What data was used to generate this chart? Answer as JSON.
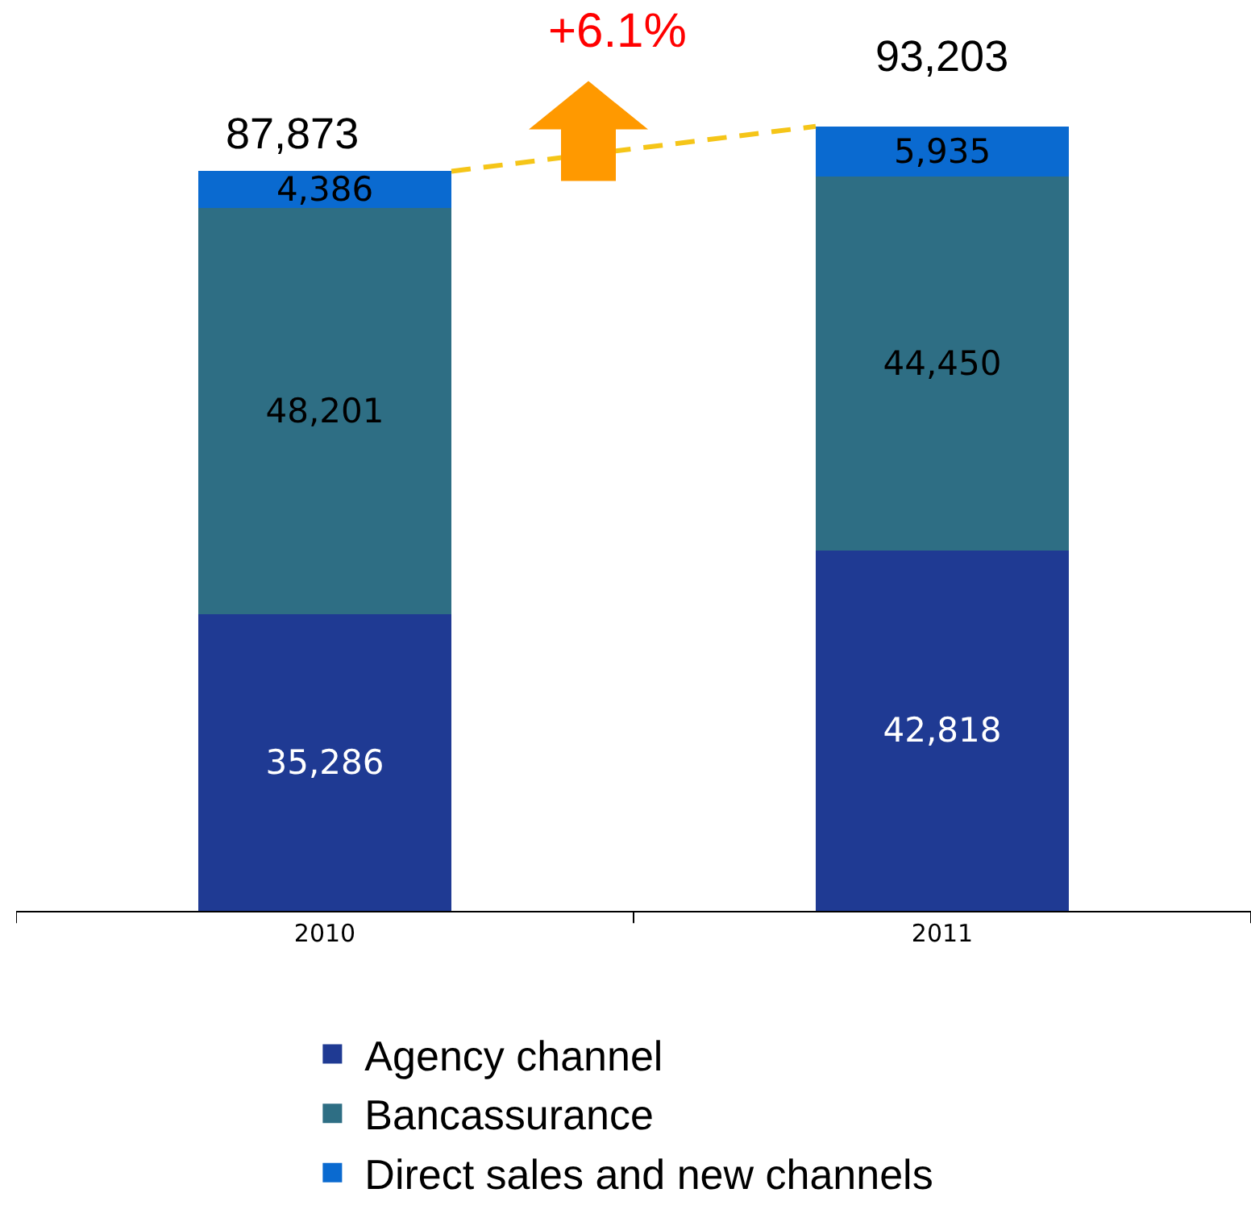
{
  "chart_data": {
    "type": "bar",
    "stacked": true,
    "categories": [
      "2010",
      "2011"
    ],
    "series": [
      {
        "name": "Agency channel",
        "color": "#1f3a93",
        "values": [
          35286,
          42818
        ],
        "value_labels": [
          "35,286",
          "42,818"
        ]
      },
      {
        "name": "Bancassurance",
        "color": "#2e6e84",
        "values": [
          48201,
          44450
        ],
        "value_labels": [
          "48,201",
          "44,450"
        ]
      },
      {
        "name": "Direct sales and new channels",
        "color": "#0a6ad0",
        "values": [
          4386,
          5935
        ],
        "value_labels": [
          "4,386",
          "5,935"
        ]
      }
    ],
    "totals": [
      "87,873",
      "93,203"
    ],
    "annotations": [
      "+6.1%"
    ],
    "legend": "bottom"
  }
}
